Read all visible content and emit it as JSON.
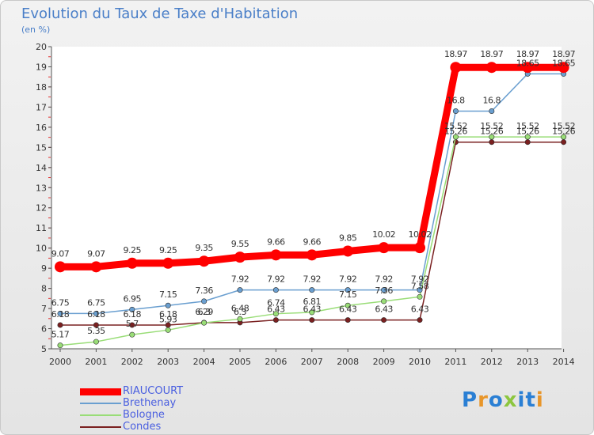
{
  "title": "Evolution du Taux de Taxe d'Habitation",
  "subtitle": "(en %)",
  "logo": {
    "text": "Proxiti",
    "colors": [
      "#2a7fd4",
      "#e8962a",
      "#2a7fd4",
      "#8cc63f",
      "#2a7fd4",
      "#2a7fd4",
      "#e8962a"
    ]
  },
  "chart_data": {
    "type": "line",
    "title": "Evolution du Taux de Taxe d'Habitation",
    "ylabel": "(en %)",
    "xlabel": "",
    "ylim": [
      5,
      20
    ],
    "yticks": [
      5,
      6,
      7,
      8,
      9,
      10,
      11,
      12,
      13,
      14,
      15,
      16,
      17,
      18,
      19,
      20
    ],
    "x": [
      "2000",
      "2001",
      "2002",
      "2003",
      "2004",
      "2005",
      "2006",
      "2007",
      "2008",
      "2009",
      "2010",
      "2011",
      "2012",
      "2013",
      "2014"
    ],
    "grid": false,
    "legend": "bottom-left",
    "series": [
      {
        "name": "RIAUCOURT",
        "color": "#ff0000",
        "values": [
          9.07,
          9.07,
          9.25,
          9.25,
          9.35,
          9.55,
          9.66,
          9.66,
          9.85,
          10.02,
          10.02,
          18.97,
          18.97,
          18.97,
          18.97
        ]
      },
      {
        "name": "Brethenay",
        "color": "#6a9fd0",
        "values": [
          6.75,
          6.75,
          6.95,
          7.15,
          7.36,
          7.92,
          7.92,
          7.92,
          7.92,
          7.92,
          7.92,
          16.8,
          16.8,
          18.65,
          18.65
        ]
      },
      {
        "name": "Bologne",
        "color": "#99dd77",
        "values": [
          5.17,
          5.35,
          5.7,
          5.93,
          6.29,
          6.48,
          6.74,
          6.81,
          7.15,
          7.36,
          7.58,
          15.52,
          15.52,
          15.52,
          15.52
        ]
      },
      {
        "name": "Condes",
        "color": "#7a2020",
        "values": [
          6.18,
          6.18,
          6.18,
          6.18,
          6.3,
          6.3,
          6.43,
          6.43,
          6.43,
          6.43,
          6.43,
          15.26,
          15.26,
          15.26,
          15.26
        ]
      }
    ]
  }
}
